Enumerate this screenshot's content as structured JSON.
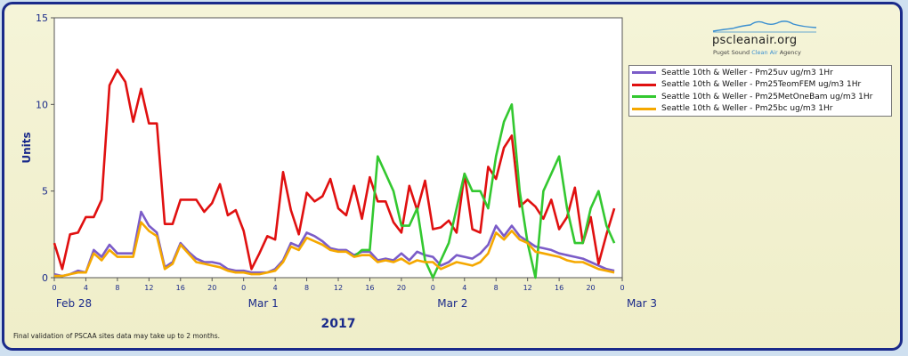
{
  "logo": {
    "name": "pscleanair.org",
    "sub_prefix": "Puget Sound ",
    "sub_accent": "Clean Air",
    "sub_suffix": " Agency"
  },
  "footnote": "Final validation of PSCAA sites data may take up to 2 months.",
  "chart_data": {
    "type": "line",
    "title": "",
    "ylabel": "Units",
    "xlabel": "2017",
    "ylim": [
      0,
      15
    ],
    "xlim": [
      0,
      72
    ],
    "y_ticks": [
      0,
      5,
      10,
      15
    ],
    "hour_ticks": [
      0,
      4,
      8,
      12,
      16,
      20,
      0,
      4,
      8,
      12,
      16,
      20,
      0,
      4,
      8,
      12,
      16,
      20,
      0
    ],
    "day_labels": [
      "Feb 28",
      "Mar 1",
      "Mar 2",
      "Mar 3"
    ],
    "grid": false,
    "legend_position": "right",
    "series": [
      {
        "name": "Seattle 10th & Weller - Pm25uv  ug/m3  1Hr",
        "color": "#7b5cc8",
        "x": [
          0,
          1,
          2,
          3,
          4,
          5,
          6,
          7,
          8,
          9,
          10,
          11,
          12,
          13,
          14,
          15,
          16,
          17,
          18,
          19,
          20,
          21,
          22,
          23,
          24,
          25,
          26,
          27,
          28,
          29,
          30,
          31,
          32,
          33,
          34,
          35,
          36,
          37,
          38,
          39,
          40,
          41,
          42,
          43,
          44,
          45,
          46,
          47,
          48,
          49,
          50,
          51,
          52,
          53,
          54,
          55,
          56,
          57,
          58,
          59,
          60,
          61,
          62,
          63,
          64,
          65,
          66,
          67,
          68,
          69,
          70,
          71
        ],
        "y": [
          0.2,
          0.1,
          0.2,
          0.4,
          0.3,
          1.6,
          1.2,
          1.9,
          1.4,
          1.4,
          1.4,
          3.8,
          3.0,
          2.6,
          0.6,
          0.9,
          2.0,
          1.5,
          1.1,
          0.9,
          0.9,
          0.8,
          0.5,
          0.4,
          0.4,
          0.3,
          0.3,
          0.3,
          0.5,
          1.0,
          2.0,
          1.8,
          2.6,
          2.4,
          2.1,
          1.7,
          1.6,
          1.6,
          1.3,
          1.5,
          1.5,
          1.0,
          1.1,
          1.0,
          1.4,
          1.0,
          1.5,
          1.3,
          1.2,
          0.7,
          0.9,
          1.3,
          1.2,
          1.1,
          1.4,
          1.9,
          3.0,
          2.4,
          3.0,
          2.4,
          2.1,
          1.8,
          1.7,
          1.6,
          1.4,
          1.3,
          1.2,
          1.1,
          0.9,
          0.7,
          0.5,
          0.4
        ]
      },
      {
        "name": "Seattle 10th & Weller - Pm25TeomFEM  ug/m3  1Hr",
        "color": "#e01010",
        "x": [
          0,
          1,
          2,
          3,
          4,
          5,
          6,
          7,
          8,
          9,
          10,
          11,
          12,
          13,
          14,
          15,
          16,
          17,
          18,
          19,
          20,
          21,
          22,
          23,
          24,
          25,
          26,
          27,
          28,
          29,
          30,
          31,
          32,
          33,
          34,
          35,
          36,
          37,
          38,
          39,
          40,
          41,
          42,
          43,
          44,
          45,
          46,
          47,
          48,
          49,
          50,
          51,
          52,
          53,
          54,
          55,
          56,
          57,
          58,
          59,
          60,
          61,
          62,
          63,
          64,
          65,
          66,
          67,
          68,
          69,
          70,
          71
        ],
        "y": [
          2.0,
          0.5,
          2.5,
          2.6,
          3.5,
          3.5,
          4.5,
          11.1,
          12.0,
          11.3,
          9.0,
          10.9,
          8.9,
          8.9,
          3.1,
          3.1,
          4.5,
          4.5,
          4.5,
          3.8,
          4.3,
          5.4,
          3.6,
          3.9,
          2.7,
          0.5,
          1.4,
          2.4,
          2.2,
          6.1,
          3.9,
          2.5,
          4.9,
          4.4,
          4.7,
          5.7,
          4.0,
          3.6,
          5.3,
          3.4,
          5.8,
          4.4,
          4.4,
          3.2,
          2.6,
          5.3,
          3.9,
          5.6,
          2.8,
          2.9,
          3.3,
          2.6,
          6.0,
          2.8,
          2.6,
          6.4,
          5.7,
          7.5,
          8.2,
          4.1,
          4.5,
          4.1,
          3.4,
          4.5,
          2.8,
          3.5,
          5.2,
          2.0,
          3.5,
          0.8,
          2.5,
          4.0
        ]
      },
      {
        "name": "Seattle 10th & Weller - Pm25MetOneBam  ug/m3  1Hr",
        "color": "#33c830",
        "x": [
          38,
          39,
          40,
          41,
          42,
          43,
          44,
          45,
          46,
          47,
          48,
          49,
          50,
          51,
          52,
          53,
          54,
          55,
          56,
          57,
          58,
          59,
          60,
          61,
          62,
          63,
          64,
          65,
          66,
          67,
          68,
          69,
          70,
          71
        ],
        "y": [
          1.2,
          1.6,
          1.6,
          7.0,
          6.0,
          5.0,
          3.0,
          3.0,
          4.0,
          1.0,
          0.0,
          1.0,
          2.0,
          4.0,
          6.0,
          5.0,
          5.0,
          4.0,
          7.0,
          9.0,
          10.0,
          5.0,
          2.0,
          0.0,
          5.0,
          6.0,
          7.0,
          4.0,
          2.0,
          2.0,
          4.0,
          5.0,
          3.0,
          2.0
        ]
      },
      {
        "name": "Seattle 10th & Weller - Pm25bc  ug/m3  1Hr",
        "color": "#f5a800",
        "x": [
          0,
          1,
          2,
          3,
          4,
          5,
          6,
          7,
          8,
          9,
          10,
          11,
          12,
          13,
          14,
          15,
          16,
          17,
          18,
          19,
          20,
          21,
          22,
          23,
          24,
          25,
          26,
          27,
          28,
          29,
          30,
          31,
          32,
          33,
          34,
          35,
          36,
          37,
          38,
          39,
          40,
          41,
          42,
          43,
          44,
          45,
          46,
          47,
          48,
          49,
          50,
          51,
          52,
          53,
          54,
          55,
          56,
          57,
          58,
          59,
          60,
          61,
          62,
          63,
          64,
          65,
          66,
          67,
          68,
          69,
          70,
          71
        ],
        "y": [
          0.1,
          0.1,
          0.2,
          0.3,
          0.3,
          1.4,
          1.0,
          1.6,
          1.2,
          1.2,
          1.2,
          3.2,
          2.7,
          2.4,
          0.5,
          0.8,
          1.9,
          1.4,
          0.9,
          0.8,
          0.7,
          0.6,
          0.4,
          0.3,
          0.3,
          0.2,
          0.2,
          0.3,
          0.4,
          0.9,
          1.8,
          1.6,
          2.3,
          2.1,
          1.9,
          1.6,
          1.5,
          1.5,
          1.2,
          1.3,
          1.3,
          0.9,
          1.0,
          0.9,
          1.1,
          0.8,
          1.0,
          0.9,
          0.9,
          0.5,
          0.7,
          0.9,
          0.8,
          0.7,
          0.9,
          1.4,
          2.6,
          2.2,
          2.7,
          2.2,
          2.0,
          1.5,
          1.4,
          1.3,
          1.2,
          1.0,
          0.9,
          0.9,
          0.7,
          0.5,
          0.4,
          0.3
        ]
      }
    ]
  }
}
